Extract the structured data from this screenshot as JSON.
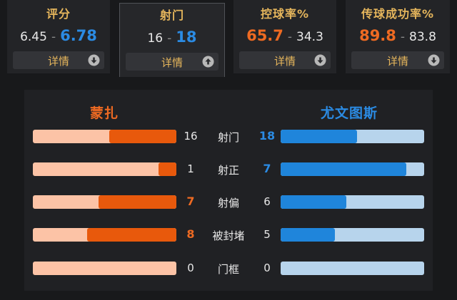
{
  "tabs": [
    {
      "title": "评分",
      "home": "6.45",
      "away": "6.78",
      "detail": "详情",
      "icon": "chevron-down-icon"
    },
    {
      "title": "射门",
      "home": "16",
      "away": "18",
      "detail": "详情",
      "icon": "chevron-up-icon"
    },
    {
      "title": "控球率%",
      "home": "65.7",
      "away": "34.3",
      "detail": "详情",
      "icon": "chevron-down-icon"
    },
    {
      "title": "传球成功率%",
      "home": "89.8",
      "away": "83.8",
      "detail": "详情",
      "icon": "chevron-down-icon"
    }
  ],
  "tab_separator": "-",
  "teams": {
    "home": "蒙扎",
    "away": "尤文图斯"
  },
  "stats": [
    {
      "label": "射门",
      "home": "16",
      "away": "18",
      "home_share": 0.47,
      "away_share": 0.53
    },
    {
      "label": "射正",
      "home": "1",
      "away": "7",
      "home_share": 0.125,
      "away_share": 0.875
    },
    {
      "label": "射偏",
      "home": "7",
      "away": "6",
      "home_share": 0.54,
      "away_share": 0.46
    },
    {
      "label": "被封堵",
      "home": "8",
      "away": "5",
      "home_share": 0.62,
      "away_share": 0.38
    },
    {
      "label": "门框",
      "home": "0",
      "away": "0",
      "home_share": 0,
      "away_share": 0
    }
  ],
  "colors": {
    "home_accent": "#ee6a22",
    "away_accent": "#2b8be3",
    "tab_title": "#e6b65c",
    "home_track": "#fcc3a6",
    "away_track": "#b7d4ec"
  }
}
